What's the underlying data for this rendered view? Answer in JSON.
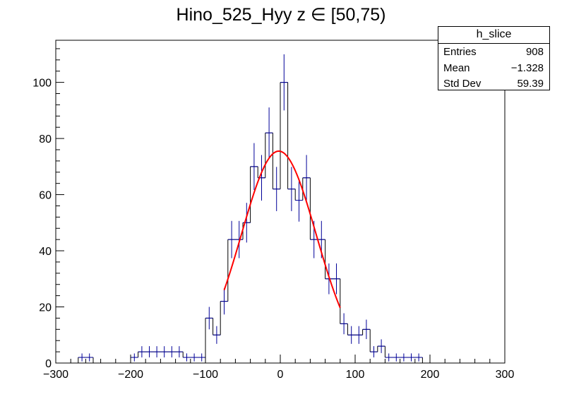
{
  "title": "Hino_525_Hyy z  ∈ [50,75)",
  "stats": {
    "name": "h_slice",
    "rows": [
      {
        "label": "Entries",
        "value": "908"
      },
      {
        "label": "Mean",
        "value": "−1.328"
      },
      {
        "label": "Std Dev",
        "value": "59.39"
      }
    ]
  },
  "colors": {
    "histogram": "#000099",
    "fit": "#ff0000"
  },
  "chart_data": {
    "type": "histogram",
    "xlim": [
      -300,
      300
    ],
    "ylim": [
      0,
      115
    ],
    "bin_width": 10,
    "x_tick_labels": [
      "−300",
      "−200",
      "−100",
      "0",
      "100",
      "200",
      "300"
    ],
    "y_tick_labels": [
      "0",
      "20",
      "40",
      "60",
      "80",
      "100"
    ],
    "bins": [
      {
        "x": -265,
        "y": 2
      },
      {
        "x": -255,
        "y": 2
      },
      {
        "x": -195,
        "y": 2
      },
      {
        "x": -185,
        "y": 4
      },
      {
        "x": -175,
        "y": 4
      },
      {
        "x": -165,
        "y": 4
      },
      {
        "x": -155,
        "y": 4
      },
      {
        "x": -145,
        "y": 4
      },
      {
        "x": -135,
        "y": 4
      },
      {
        "x": -125,
        "y": 2
      },
      {
        "x": -115,
        "y": 2
      },
      {
        "x": -105,
        "y": 2
      },
      {
        "x": -95,
        "y": 16
      },
      {
        "x": -85,
        "y": 10
      },
      {
        "x": -75,
        "y": 22
      },
      {
        "x": -65,
        "y": 44
      },
      {
        "x": -55,
        "y": 44
      },
      {
        "x": -45,
        "y": 50
      },
      {
        "x": -35,
        "y": 70
      },
      {
        "x": -25,
        "y": 66
      },
      {
        "x": -15,
        "y": 82
      },
      {
        "x": -5,
        "y": 62
      },
      {
        "x": 5,
        "y": 100
      },
      {
        "x": 15,
        "y": 62
      },
      {
        "x": 25,
        "y": 58
      },
      {
        "x": 35,
        "y": 66
      },
      {
        "x": 45,
        "y": 44
      },
      {
        "x": 55,
        "y": 44
      },
      {
        "x": 65,
        "y": 30
      },
      {
        "x": 75,
        "y": 30
      },
      {
        "x": 85,
        "y": 14
      },
      {
        "x": 95,
        "y": 10
      },
      {
        "x": 105,
        "y": 10
      },
      {
        "x": 115,
        "y": 12
      },
      {
        "x": 125,
        "y": 4
      },
      {
        "x": 135,
        "y": 6
      },
      {
        "x": 145,
        "y": 2
      },
      {
        "x": 155,
        "y": 2
      },
      {
        "x": 165,
        "y": 2
      },
      {
        "x": 175,
        "y": 2
      },
      {
        "x": 185,
        "y": 2
      }
    ],
    "fit": {
      "type": "gaussian",
      "amplitude": 75.5,
      "mean": -2,
      "sigma": 50,
      "range": [
        -75,
        80
      ]
    }
  }
}
